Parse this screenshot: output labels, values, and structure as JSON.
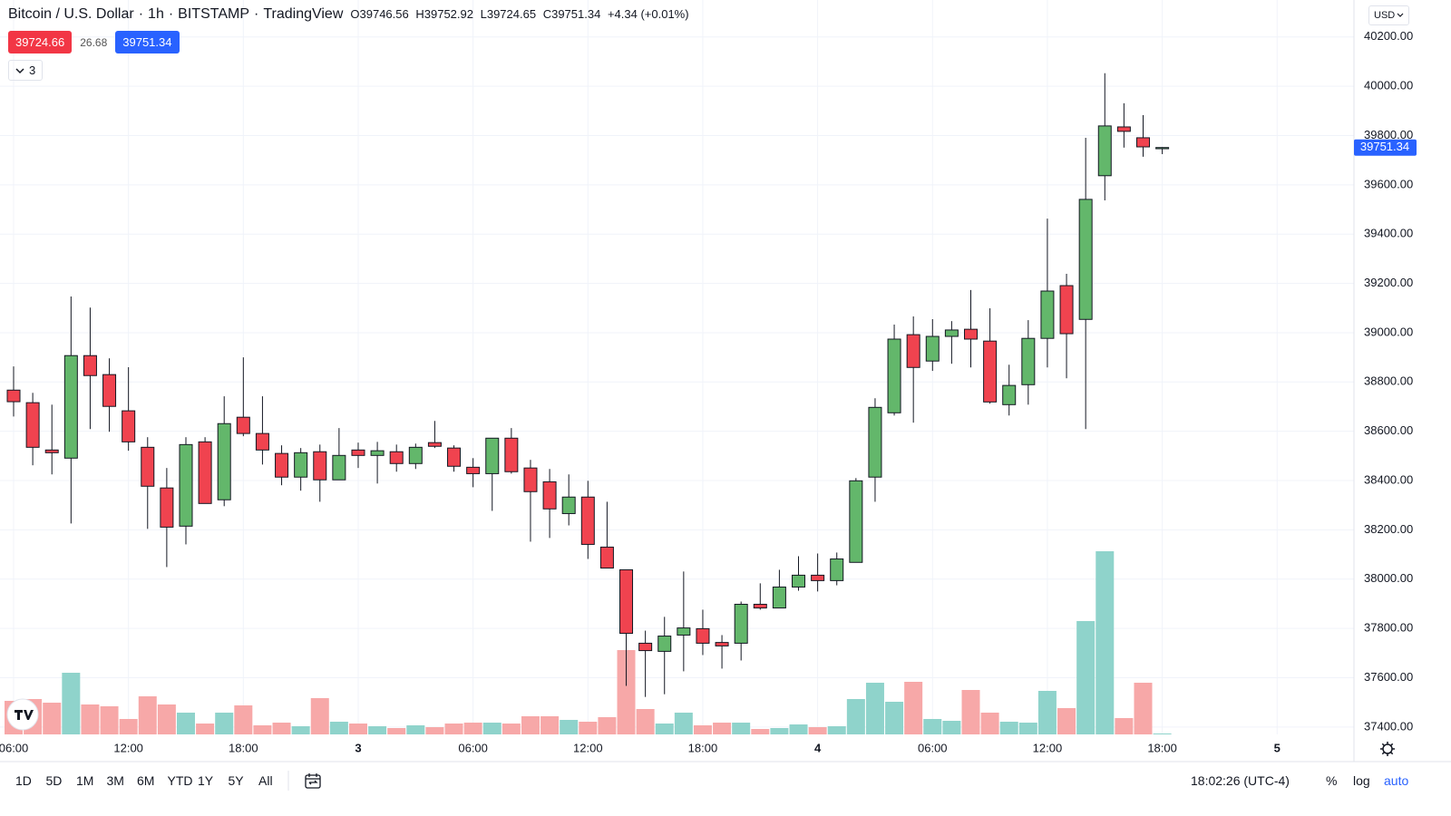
{
  "header": {
    "symbol": "Bitcoin / U.S. Dollar",
    "separator": "·",
    "interval": "1h",
    "exchange": "BITSTAMP",
    "source": "TradingView",
    "ohlc": [
      {
        "label": "O",
        "value": "39746.56"
      },
      {
        "label": "H",
        "value": "39752.92"
      },
      {
        "label": "L",
        "value": "39724.65"
      },
      {
        "label": "C",
        "value": "39751.34"
      }
    ],
    "change": "+4.34 (+0.01%)",
    "bid": "39724.66",
    "spread": "26.68",
    "ask": "39751.34",
    "indicators": "3",
    "currency": "USD"
  },
  "chart_data": {
    "type": "candlestick",
    "categories": [
      "06:00",
      null,
      null,
      null,
      null,
      null,
      "12:00",
      null,
      null,
      null,
      null,
      null,
      "18:00",
      null,
      null,
      null,
      null,
      null,
      "3",
      null,
      null,
      null,
      null,
      null,
      "06:00",
      null,
      null,
      null,
      null,
      null,
      "12:00",
      null,
      null,
      null,
      null,
      null,
      "18:00",
      null,
      null,
      null,
      null,
      null,
      "4",
      null,
      null,
      null,
      null,
      null,
      "06:00",
      null,
      null,
      null,
      null,
      null,
      "12:00",
      null,
      null,
      null,
      null,
      null,
      "18:00",
      null,
      null,
      null,
      null,
      null,
      "5"
    ],
    "open": [
      38767,
      38716,
      38524,
      38491,
      38907,
      38830,
      38683,
      38535,
      38370,
      38215,
      38557,
      38322,
      38657,
      38591,
      38510,
      38414,
      38517,
      38403,
      38524,
      38502,
      38517,
      38469,
      38554,
      38532,
      38454,
      38428,
      38572,
      38451,
      38395,
      38266,
      38333,
      38130,
      38038,
      37740,
      37707,
      37773,
      37799,
      37743,
      37740,
      37898,
      37883,
      37968,
      38016,
      37994,
      38068,
      38414,
      38675,
      38992,
      38885,
      38985,
      39014,
      38966,
      38708,
      38789,
      38977,
      39191,
      39054,
      39637,
      39835,
      39791,
      39746.56,
      null,
      null,
      null,
      null,
      null,
      null
    ],
    "high": [
      38863,
      38756,
      38708,
      39147,
      39102,
      38896,
      38860,
      38576,
      38451,
      38576,
      38576,
      38742,
      38900,
      38742,
      38543,
      38532,
      38546,
      38613,
      38554,
      38557,
      38546,
      38550,
      38642,
      38543,
      38491,
      38572,
      38613,
      38484,
      38447,
      38425,
      38399,
      38314,
      38038,
      37791,
      37847,
      38031,
      37876,
      37773,
      37909,
      37983,
      38038,
      38093,
      38104,
      38108,
      38410,
      38734,
      39033,
      39066,
      39055,
      39047,
      39173,
      39099,
      38870,
      39051,
      39463,
      39239,
      39791,
      40053,
      39931,
      39883,
      39752.92,
      null,
      null,
      null,
      null,
      null,
      null
    ],
    "low": [
      38660,
      38462,
      38425,
      38226,
      38609,
      38598,
      38521,
      38204,
      38049,
      38141,
      38307,
      38296,
      38580,
      38465,
      38381,
      38359,
      38314,
      38403,
      38451,
      38388,
      38436,
      38447,
      38532,
      38436,
      38373,
      38277,
      38428,
      38152,
      38167,
      38218,
      38082,
      38045,
      37567,
      37522,
      37533,
      37626,
      37692,
      37637,
      37670,
      37876,
      37883,
      37953,
      37950,
      37975,
      38068,
      38314,
      38664,
      38635,
      38845,
      38874,
      38859,
      38712,
      38664,
      38708,
      38859,
      38815,
      38609,
      39537,
      39751,
      39714,
      39724.65,
      null,
      null,
      null,
      null,
      null,
      null
    ],
    "close": [
      38720,
      38535,
      38513,
      38907,
      38826,
      38701,
      38557,
      38377,
      38211,
      38546,
      38307,
      38631,
      38591,
      38524,
      38414,
      38513,
      38403,
      38502,
      38502,
      38521,
      38469,
      38535,
      38539,
      38458,
      38428,
      38572,
      38436,
      38355,
      38285,
      38333,
      38141,
      38045,
      37780,
      37710,
      37769,
      37802,
      37740,
      37729,
      37898,
      37883,
      37968,
      38016,
      37994,
      38082,
      38399,
      38697,
      38974,
      38859,
      38985,
      39011,
      38974,
      38719,
      38786,
      38977,
      39169,
      38996,
      39541,
      39839,
      39817,
      39754,
      39751.34,
      null,
      null,
      null,
      null,
      null,
      null
    ],
    "volume": [
      37,
      39,
      35,
      68,
      33,
      31,
      17,
      42,
      33,
      24,
      12,
      24,
      32,
      10,
      13,
      9,
      40,
      14,
      12,
      9,
      7,
      10,
      8,
      12,
      13,
      13,
      12,
      20,
      20,
      16,
      14,
      19,
      93,
      28,
      12,
      24,
      10,
      13,
      13,
      6,
      7,
      11,
      8,
      9,
      39,
      57,
      36,
      58,
      17,
      15,
      49,
      24,
      14,
      13,
      48,
      29,
      125,
      202,
      18,
      57,
      1,
      null,
      null,
      null,
      null,
      null,
      null
    ],
    "up_color": "#63b76b",
    "down_color": "#f0434f",
    "volume_up_color": "#8fd3cb",
    "volume_down_color": "#f7a8a8",
    "ylim": [
      37370,
      40350
    ],
    "yticks": [
      {
        "value": 37400,
        "label": "37400.00"
      },
      {
        "value": 37600,
        "label": "37600.00"
      },
      {
        "value": 37800,
        "label": "37800.00"
      },
      {
        "value": 38000,
        "label": "38000.00"
      },
      {
        "value": 38200,
        "label": "38200.00"
      },
      {
        "value": 38400,
        "label": "38400.00"
      },
      {
        "value": 38600,
        "label": "38600.00"
      },
      {
        "value": 38800,
        "label": "38800.00"
      },
      {
        "value": 39000,
        "label": "39000.00"
      },
      {
        "value": 39200,
        "label": "39200.00"
      },
      {
        "value": 39400,
        "label": "39400.00"
      },
      {
        "value": 39600,
        "label": "39600.00"
      },
      {
        "value": 39800,
        "label": "39800.00"
      },
      {
        "value": 40000,
        "label": "40000.00"
      },
      {
        "value": 40200,
        "label": "40200.00"
      }
    ],
    "grid": true
  },
  "toolbar": {
    "ranges": [
      "1D",
      "5D",
      "1M",
      "3M",
      "6M",
      "YTD",
      "1Y",
      "5Y",
      "All"
    ],
    "clock": "18:02:26 (UTC-4)",
    "percent": "%",
    "log": "log",
    "auto": "auto"
  }
}
